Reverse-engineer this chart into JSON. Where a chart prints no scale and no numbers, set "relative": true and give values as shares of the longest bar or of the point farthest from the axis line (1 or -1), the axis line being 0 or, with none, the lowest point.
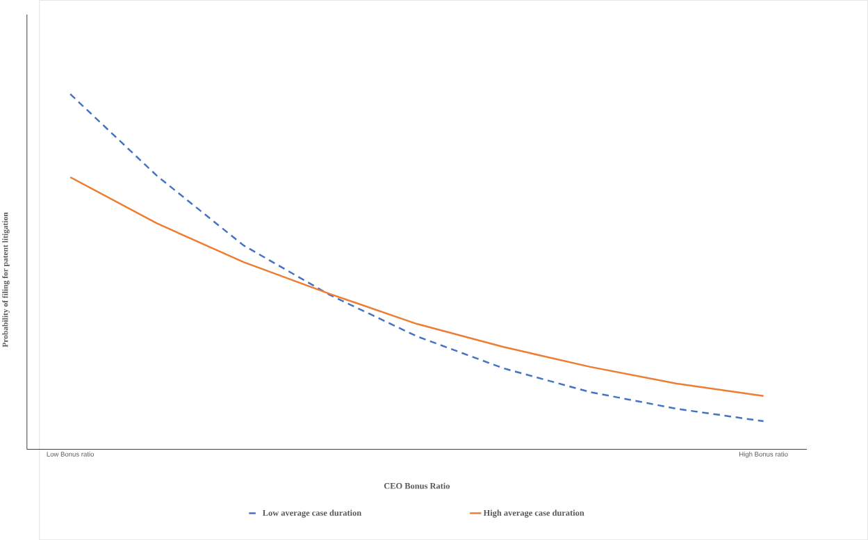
{
  "chart_data": {
    "type": "line",
    "xlabel": "CEO Bonus Ratio",
    "ylabel": "Probability of filing for patent litigation",
    "categories": [
      "Low Bonus ratio",
      null,
      null,
      null,
      null,
      null,
      null,
      null,
      "High Bonus ratio"
    ],
    "relative": true,
    "legend": "bottom",
    "marker": "none",
    "series": [
      {
        "name": "Low average case duration",
        "color": "#4472c4",
        "line_style": "dashed",
        "values": [
          1,
          0.77,
          0.574,
          0.434,
          0.318,
          0.228,
          0.161,
          0.114,
          0.079
        ]
      },
      {
        "name": "High average case duration",
        "color": "#ed7d31",
        "line_style": "solid",
        "values": [
          0.766,
          0.636,
          0.527,
          0.437,
          0.353,
          0.288,
          0.232,
          0.185,
          0.15
        ]
      }
    ]
  }
}
